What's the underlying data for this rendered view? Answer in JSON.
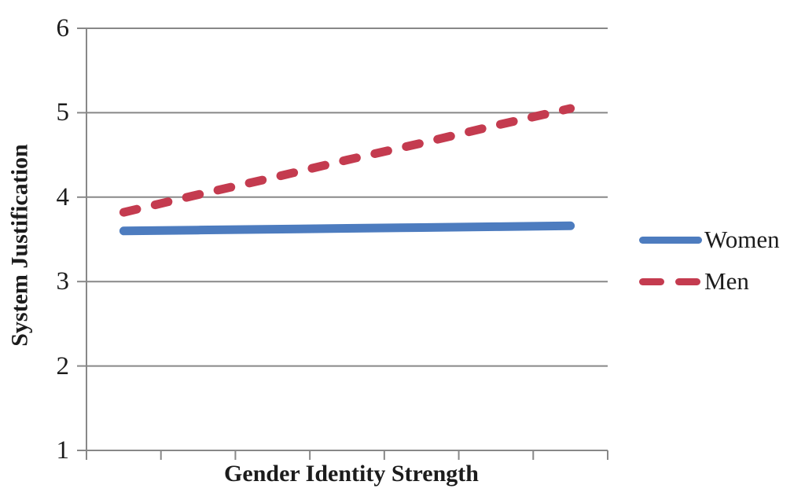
{
  "chart_data": {
    "type": "line",
    "title": "",
    "xlabel": "Gender Identity Strength",
    "ylabel": "System Justification",
    "ylim": [
      1,
      6
    ],
    "yticks": [
      1,
      2,
      3,
      4,
      5,
      6
    ],
    "ytick_labels": [
      "1",
      "2",
      "3",
      "4",
      "5",
      "6"
    ],
    "x_categories": [
      1,
      2,
      3,
      4,
      5,
      6,
      7
    ],
    "x_tick_labels": [
      "",
      "",
      "",
      "",
      "",
      "",
      ""
    ],
    "grid": "horizontal",
    "legend_position": "right",
    "axis_color": "#888888",
    "series": [
      {
        "name": "Women",
        "color": "#4D7CBF",
        "style": "solid",
        "values": [
          3.6,
          3.61,
          3.62,
          3.63,
          3.64,
          3.65,
          3.66
        ]
      },
      {
        "name": "Men",
        "color": "#C43B4F",
        "style": "dashed",
        "values": [
          3.82,
          4.03,
          4.23,
          4.44,
          4.64,
          4.85,
          5.05
        ]
      }
    ]
  }
}
